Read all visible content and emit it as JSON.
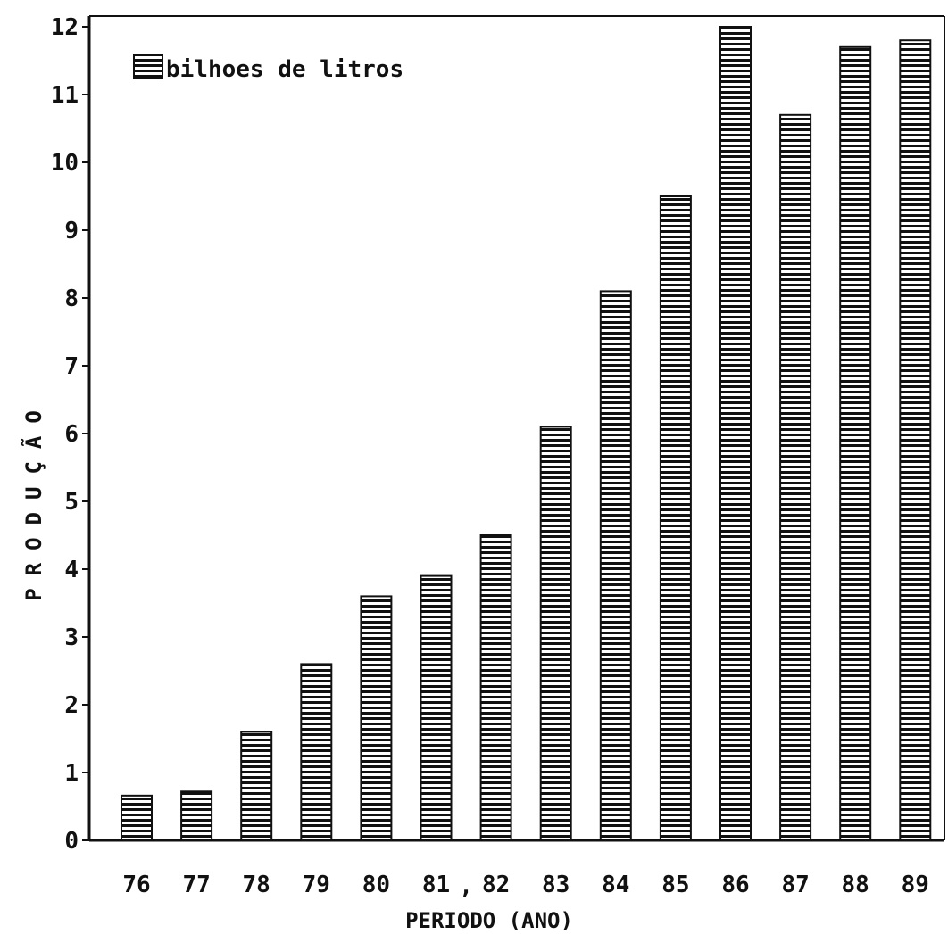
{
  "chart_data": {
    "type": "bar",
    "title": "",
    "legend": {
      "label": "bilhoes de litros",
      "position": "top-left"
    },
    "xlabel": "PERIODO (ANO)",
    "ylabel": "PRODUÇÃO",
    "categories": [
      "76",
      "77",
      "78",
      "79",
      "80",
      "81",
      "82",
      "83",
      "84",
      "85",
      "86",
      "87",
      "88",
      "89"
    ],
    "x_tick_separator": ",",
    "values": [
      0.66,
      0.72,
      1.6,
      2.6,
      3.6,
      3.9,
      4.5,
      6.1,
      8.1,
      9.5,
      12.0,
      10.7,
      11.7,
      11.8
    ],
    "ylim": [
      0,
      12
    ],
    "yticks": [
      "0",
      "1",
      "2",
      "3",
      "4",
      "5",
      "6",
      "7",
      "8",
      "9",
      "10",
      "11",
      "12"
    ],
    "grid": false,
    "bar_pattern": "horizontal-hatch",
    "colors": {
      "ink": "#111111",
      "background": "#ffffff"
    }
  }
}
